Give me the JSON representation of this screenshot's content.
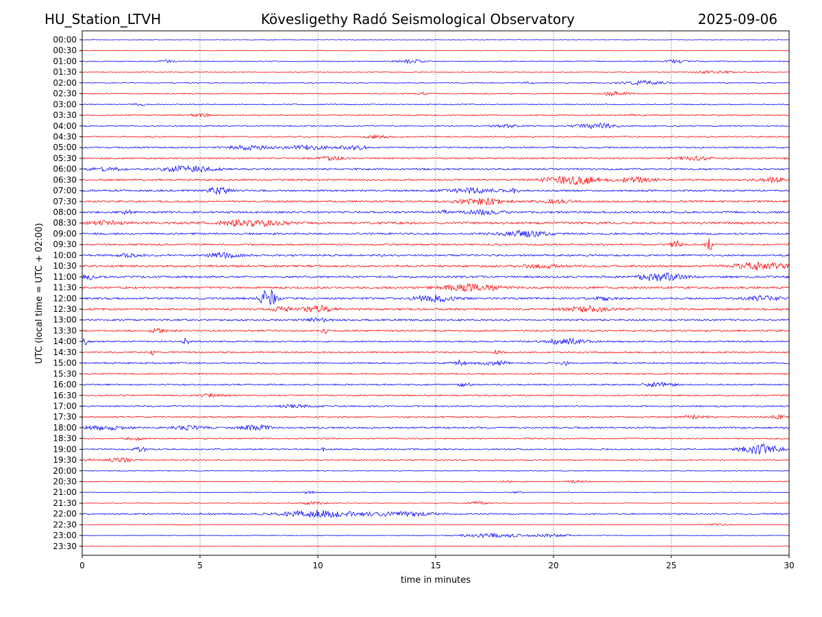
{
  "header": {
    "station": "HU_Station_LTVH",
    "observatory": "Kövesligethy Radó Seismological Observatory",
    "date": "2025-09-06"
  },
  "chart_data": {
    "type": "line",
    "title": "Kövesligethy Radó Seismological Observatory",
    "xlabel": "time in minutes",
    "ylabel": "UTC (local time = UTC + 02:00)",
    "xlim": [
      0,
      30
    ],
    "xticks": [
      0,
      5,
      10,
      15,
      20,
      25,
      30
    ],
    "grid": "vertical dotted at x ticks",
    "colors": {
      "even_rows": "#0000ff",
      "odd_rows": "#ff0000",
      "grid": "#000000"
    },
    "rows": [
      {
        "label": "00:00",
        "noise": 0.4,
        "events": []
      },
      {
        "label": "00:30",
        "noise": 0.4,
        "events": []
      },
      {
        "label": "01:00",
        "noise": 0.7,
        "events": [
          {
            "t": 3.6,
            "amp": 1.5,
            "dur": 0.4
          },
          {
            "t": 13.9,
            "amp": 2.5,
            "dur": 0.8
          },
          {
            "t": 25.2,
            "amp": 2.2,
            "dur": 0.6
          }
        ]
      },
      {
        "label": "01:30",
        "noise": 0.5,
        "events": [
          {
            "t": 26.8,
            "amp": 2.0,
            "dur": 1.2
          }
        ]
      },
      {
        "label": "02:00",
        "noise": 0.6,
        "events": [
          {
            "t": 23.8,
            "amp": 2.8,
            "dur": 1.2
          },
          {
            "t": 19.0,
            "amp": 1.5,
            "dur": 0.3
          }
        ]
      },
      {
        "label": "02:30",
        "noise": 0.7,
        "events": [
          {
            "t": 22.6,
            "amp": 2.6,
            "dur": 0.8
          },
          {
            "t": 14.5,
            "amp": 1.3,
            "dur": 0.4
          }
        ]
      },
      {
        "label": "03:00",
        "noise": 0.7,
        "events": [
          {
            "t": 2.5,
            "amp": 1.2,
            "dur": 0.5
          }
        ]
      },
      {
        "label": "03:30",
        "noise": 0.8,
        "events": [
          {
            "t": 5.0,
            "amp": 2.2,
            "dur": 0.7
          },
          {
            "t": 23.5,
            "amp": 1.4,
            "dur": 0.5
          }
        ]
      },
      {
        "label": "04:00",
        "noise": 0.9,
        "events": [
          {
            "t": 21.8,
            "amp": 3.4,
            "dur": 1.2
          },
          {
            "t": 18.0,
            "amp": 1.8,
            "dur": 0.8
          }
        ]
      },
      {
        "label": "04:30",
        "noise": 0.9,
        "events": [
          {
            "t": 12.5,
            "amp": 1.8,
            "dur": 0.7
          }
        ]
      },
      {
        "label": "05:00",
        "noise": 1.1,
        "events": [
          {
            "t": 7.0,
            "amp": 2.8,
            "dur": 1.2
          },
          {
            "t": 9.5,
            "amp": 3.0,
            "dur": 1.2
          },
          {
            "t": 11.5,
            "amp": 2.5,
            "dur": 1.0
          }
        ]
      },
      {
        "label": "05:30",
        "noise": 1.1,
        "events": [
          {
            "t": 26.0,
            "amp": 2.5,
            "dur": 1.0
          },
          {
            "t": 10.5,
            "amp": 2.0,
            "dur": 0.8
          }
        ]
      },
      {
        "label": "06:00",
        "noise": 1.3,
        "events": [
          {
            "t": 4.5,
            "amp": 4.5,
            "dur": 1.4
          },
          {
            "t": 1.0,
            "amp": 2.0,
            "dur": 1.0
          }
        ]
      },
      {
        "label": "06:30",
        "noise": 1.3,
        "events": [
          {
            "t": 20.8,
            "amp": 6.0,
            "dur": 1.6
          },
          {
            "t": 23.5,
            "amp": 3.0,
            "dur": 1.2
          },
          {
            "t": 29.2,
            "amp": 3.0,
            "dur": 0.8
          }
        ]
      },
      {
        "label": "07:00",
        "noise": 1.3,
        "events": [
          {
            "t": 5.8,
            "amp": 4.0,
            "dur": 0.8
          },
          {
            "t": 16.5,
            "amp": 3.0,
            "dur": 1.5
          },
          {
            "t": 18.3,
            "amp": 3.0,
            "dur": 0.3
          }
        ]
      },
      {
        "label": "07:30",
        "noise": 1.3,
        "events": [
          {
            "t": 17.0,
            "amp": 4.5,
            "dur": 1.4
          },
          {
            "t": 20.0,
            "amp": 2.5,
            "dur": 1.0
          }
        ]
      },
      {
        "label": "08:00",
        "noise": 1.4,
        "events": [
          {
            "t": 1.9,
            "amp": 3.0,
            "dur": 0.3
          },
          {
            "t": 15.3,
            "amp": 3.0,
            "dur": 0.2
          },
          {
            "t": 17.0,
            "amp": 2.8,
            "dur": 1.2
          }
        ]
      },
      {
        "label": "08:30",
        "noise": 1.6,
        "events": [
          {
            "t": 7.2,
            "amp": 4.8,
            "dur": 1.8
          },
          {
            "t": 1.0,
            "amp": 2.5,
            "dur": 1.0
          }
        ]
      },
      {
        "label": "09:00",
        "noise": 1.3,
        "events": [
          {
            "t": 18.8,
            "amp": 4.0,
            "dur": 1.4
          }
        ]
      },
      {
        "label": "09:30",
        "noise": 1.2,
        "events": [
          {
            "t": 25.2,
            "amp": 9.0,
            "dur": 0.25
          },
          {
            "t": 26.6,
            "amp": 9.0,
            "dur": 0.2
          }
        ]
      },
      {
        "label": "10:00",
        "noise": 1.3,
        "events": [
          {
            "t": 6.0,
            "amp": 3.0,
            "dur": 1.0
          },
          {
            "t": 2.0,
            "amp": 2.0,
            "dur": 0.8
          }
        ]
      },
      {
        "label": "10:30",
        "noise": 1.5,
        "events": [
          {
            "t": 28.8,
            "amp": 6.0,
            "dur": 1.4
          },
          {
            "t": 19.5,
            "amp": 2.5,
            "dur": 1.2
          }
        ]
      },
      {
        "label": "11:00",
        "noise": 1.4,
        "events": [
          {
            "t": 24.5,
            "amp": 5.5,
            "dur": 1.4
          },
          {
            "t": 0.3,
            "amp": 3.5,
            "dur": 0.4
          }
        ]
      },
      {
        "label": "11:30",
        "noise": 1.4,
        "events": [
          {
            "t": 16.5,
            "amp": 4.5,
            "dur": 1.8
          }
        ]
      },
      {
        "label": "12:00",
        "noise": 1.4,
        "events": [
          {
            "t": 7.9,
            "amp": 13.0,
            "dur": 0.45
          },
          {
            "t": 15.0,
            "amp": 5.0,
            "dur": 1.2
          },
          {
            "t": 22.0,
            "amp": 3.0,
            "dur": 0.6
          },
          {
            "t": 29.0,
            "amp": 3.0,
            "dur": 1.0
          }
        ]
      },
      {
        "label": "12:30",
        "noise": 1.5,
        "events": [
          {
            "t": 10.0,
            "amp": 5.0,
            "dur": 0.8
          },
          {
            "t": 8.5,
            "amp": 3.0,
            "dur": 0.5
          },
          {
            "t": 21.5,
            "amp": 3.5,
            "dur": 1.4
          }
        ]
      },
      {
        "label": "13:00",
        "noise": 1.3,
        "events": [
          {
            "t": 10.0,
            "amp": 2.5,
            "dur": 0.6
          }
        ]
      },
      {
        "label": "13:30",
        "noise": 1.2,
        "events": [
          {
            "t": 10.3,
            "amp": 4.0,
            "dur": 0.15
          },
          {
            "t": 3.2,
            "amp": 2.0,
            "dur": 0.6
          }
        ]
      },
      {
        "label": "14:00",
        "noise": 1.1,
        "events": [
          {
            "t": 0.1,
            "amp": 4.5,
            "dur": 0.25
          },
          {
            "t": 4.4,
            "amp": 4.5,
            "dur": 0.2
          },
          {
            "t": 20.5,
            "amp": 4.0,
            "dur": 1.2
          }
        ]
      },
      {
        "label": "14:30",
        "noise": 1.1,
        "events": [
          {
            "t": 3.0,
            "amp": 3.5,
            "dur": 0.15
          },
          {
            "t": 17.6,
            "amp": 3.0,
            "dur": 0.2
          }
        ]
      },
      {
        "label": "15:00",
        "noise": 1.1,
        "events": [
          {
            "t": 16.0,
            "amp": 4.0,
            "dur": 0.4
          },
          {
            "t": 17.5,
            "amp": 3.0,
            "dur": 0.8
          },
          {
            "t": 20.5,
            "amp": 3.0,
            "dur": 0.2
          }
        ]
      },
      {
        "label": "15:30",
        "noise": 1.0,
        "events": []
      },
      {
        "label": "16:00",
        "noise": 1.0,
        "events": [
          {
            "t": 24.5,
            "amp": 3.0,
            "dur": 1.0
          },
          {
            "t": 16.2,
            "amp": 2.0,
            "dur": 0.4
          }
        ]
      },
      {
        "label": "16:30",
        "noise": 1.0,
        "events": [
          {
            "t": 5.5,
            "amp": 1.8,
            "dur": 0.8
          }
        ]
      },
      {
        "label": "17:00",
        "noise": 1.0,
        "events": [
          {
            "t": 9.0,
            "amp": 1.8,
            "dur": 1.0
          }
        ]
      },
      {
        "label": "17:30",
        "noise": 1.0,
        "events": [
          {
            "t": 26.0,
            "amp": 2.0,
            "dur": 0.8
          },
          {
            "t": 29.5,
            "amp": 2.2,
            "dur": 0.5
          }
        ]
      },
      {
        "label": "18:00",
        "noise": 1.2,
        "events": [
          {
            "t": 7.3,
            "amp": 3.5,
            "dur": 1.0
          },
          {
            "t": 1.0,
            "amp": 2.5,
            "dur": 1.4
          },
          {
            "t": 4.5,
            "amp": 2.5,
            "dur": 1.0
          }
        ]
      },
      {
        "label": "18:30",
        "noise": 0.9,
        "events": [
          {
            "t": 2.3,
            "amp": 2.0,
            "dur": 0.5
          }
        ]
      },
      {
        "label": "19:00",
        "noise": 1.0,
        "events": [
          {
            "t": 28.8,
            "amp": 7.0,
            "dur": 1.2
          },
          {
            "t": 2.5,
            "amp": 3.0,
            "dur": 0.4
          },
          {
            "t": 10.2,
            "amp": 3.5,
            "dur": 0.1
          }
        ]
      },
      {
        "label": "19:30",
        "noise": 0.8,
        "events": [
          {
            "t": 1.6,
            "amp": 3.0,
            "dur": 0.8
          },
          {
            "t": 0.2,
            "amp": 2.0,
            "dur": 0.3
          }
        ]
      },
      {
        "label": "20:00",
        "noise": 0.5,
        "events": []
      },
      {
        "label": "20:30",
        "noise": 0.6,
        "events": [
          {
            "t": 21.0,
            "amp": 1.5,
            "dur": 0.6
          },
          {
            "t": 18.0,
            "amp": 1.2,
            "dur": 0.4
          }
        ]
      },
      {
        "label": "21:00",
        "noise": 0.5,
        "events": [
          {
            "t": 9.6,
            "amp": 2.0,
            "dur": 0.4
          },
          {
            "t": 18.5,
            "amp": 1.5,
            "dur": 0.3
          }
        ]
      },
      {
        "label": "21:30",
        "noise": 0.5,
        "events": [
          {
            "t": 9.8,
            "amp": 2.0,
            "dur": 0.8
          },
          {
            "t": 16.8,
            "amp": 2.0,
            "dur": 0.6
          }
        ]
      },
      {
        "label": "22:00",
        "noise": 1.0,
        "events": [
          {
            "t": 10.0,
            "amp": 5.0,
            "dur": 2.2
          },
          {
            "t": 13.5,
            "amp": 3.0,
            "dur": 2.0
          }
        ]
      },
      {
        "label": "22:30",
        "noise": 0.4,
        "events": [
          {
            "t": 27.0,
            "amp": 1.5,
            "dur": 0.8
          }
        ]
      },
      {
        "label": "23:00",
        "noise": 0.5,
        "events": [
          {
            "t": 17.5,
            "amp": 2.5,
            "dur": 2.0
          },
          {
            "t": 20.0,
            "amp": 2.0,
            "dur": 1.0
          }
        ]
      },
      {
        "label": "23:30",
        "noise": 0.3,
        "events": []
      }
    ]
  }
}
